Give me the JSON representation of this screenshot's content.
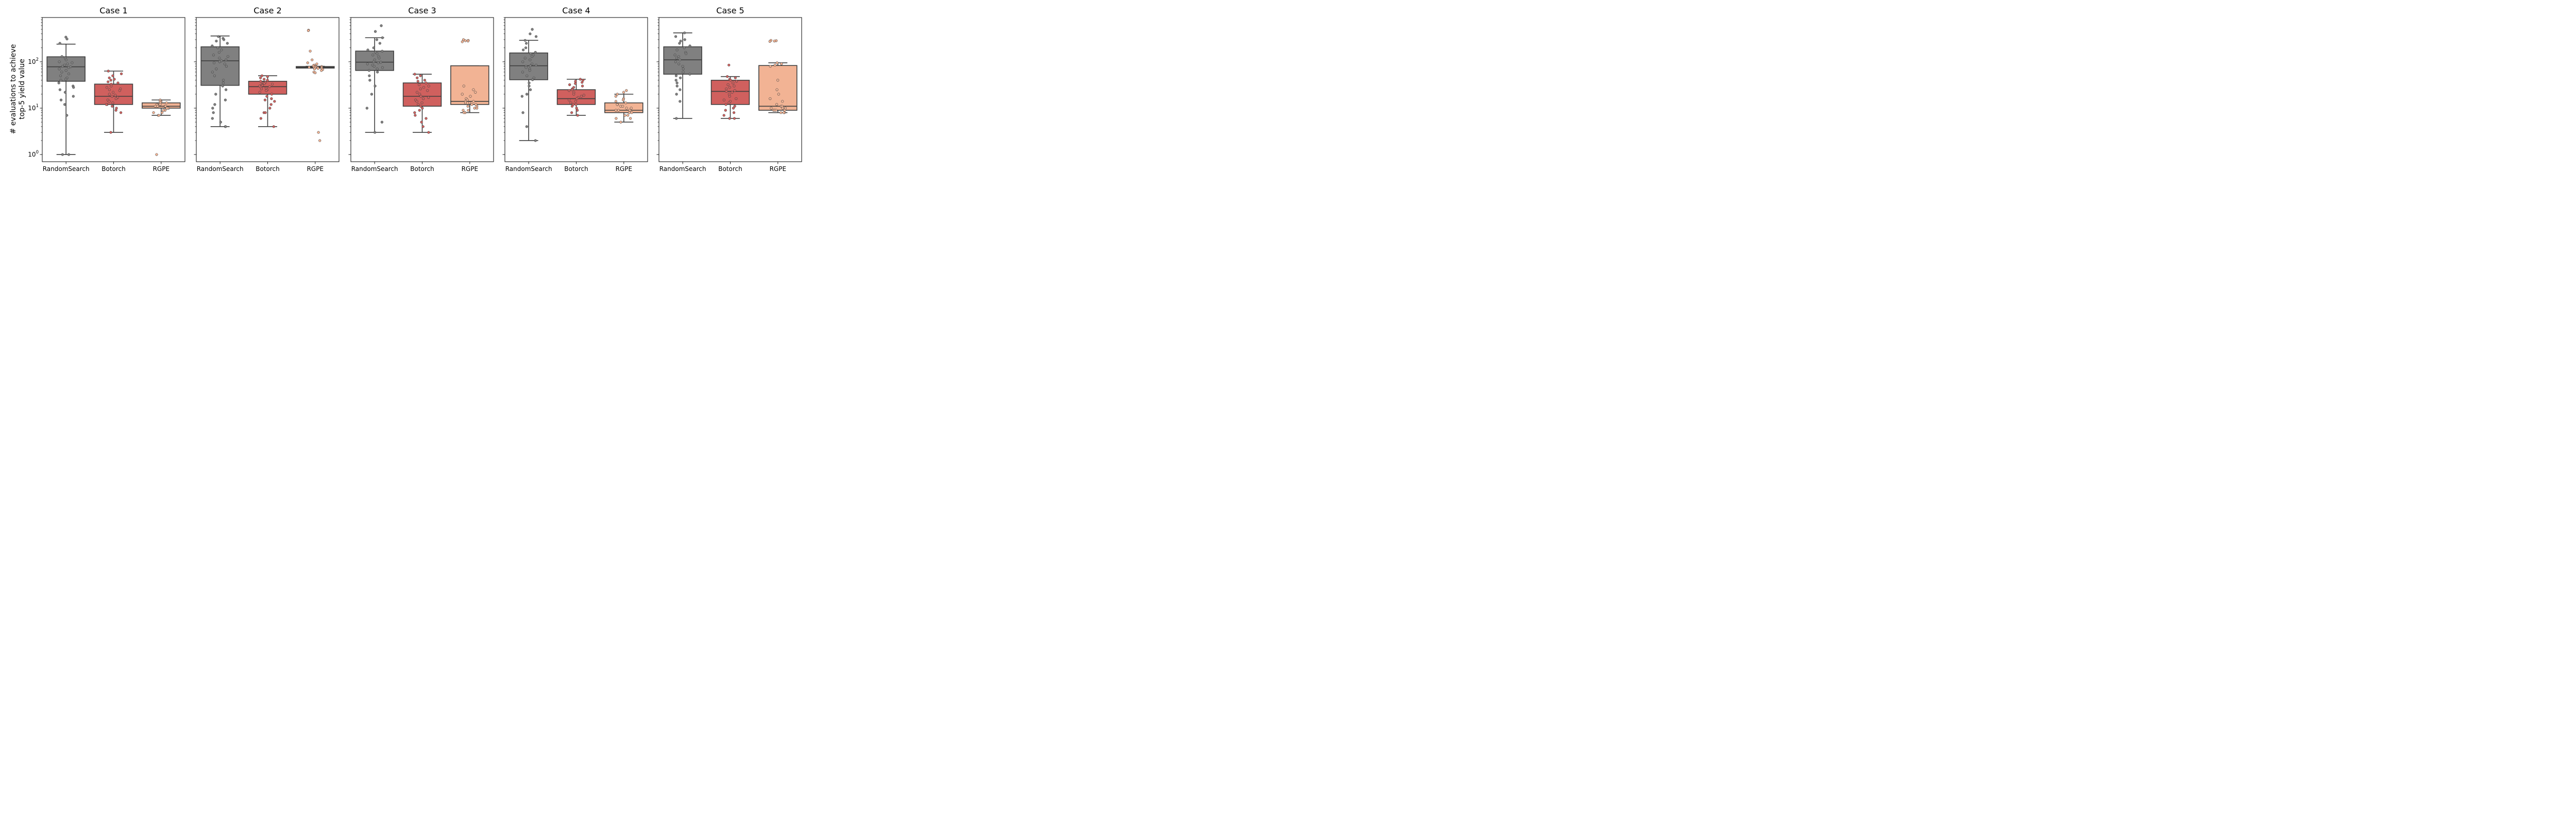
{
  "colors": {
    "RandomSearch": "#808080",
    "Botorch": "#d0605e",
    "RGPE": "#f2b394",
    "box_edge": "#3f3f3f"
  },
  "figure": {
    "ylabel_line1": "# evaluations to achieve",
    "ylabel_line2": "top-5 yield value"
  },
  "chart_data": [
    {
      "type": "box",
      "title": "Case 1",
      "categories": [
        "RandomSearch",
        "Botorch",
        "RGPE"
      ],
      "yscale": "log",
      "ylim": [
        0.7,
        900
      ],
      "yticks": [
        {
          "value": 1,
          "base": "10",
          "exp": "0"
        },
        {
          "value": 10,
          "base": "10",
          "exp": "1"
        },
        {
          "value": 100,
          "base": "10",
          "exp": "2"
        }
      ],
      "boxes": [
        {
          "name": "RandomSearch",
          "whislo": 1,
          "q1": 38,
          "med": 78,
          "q3": 128,
          "whishi": 240,
          "points": [
            340,
            310,
            250,
            130,
            120,
            110,
            100,
            95,
            90,
            85,
            80,
            78,
            75,
            70,
            65,
            60,
            55,
            50,
            45,
            42,
            40,
            35,
            30,
            28,
            25,
            22,
            18,
            15,
            12,
            7,
            1,
            1
          ]
        },
        {
          "name": "Botorch",
          "whislo": 3,
          "q1": 12,
          "med": 18,
          "q3": 33,
          "whishi": 63,
          "points": [
            63,
            55,
            50,
            45,
            42,
            40,
            37,
            35,
            33,
            30,
            28,
            26,
            25,
            24,
            22,
            20,
            19,
            18,
            17,
            16,
            15,
            14,
            13,
            12,
            12,
            11,
            10,
            9,
            8,
            3
          ]
        },
        {
          "name": "RGPE",
          "whislo": 7,
          "q1": 10,
          "med": 11,
          "q3": 13,
          "whishi": 15,
          "points": [
            15,
            14,
            14,
            13,
            13,
            12,
            12,
            12,
            11,
            11,
            11,
            11,
            10,
            10,
            10,
            10,
            9,
            9,
            8,
            8,
            7,
            7,
            1
          ]
        }
      ]
    },
    {
      "type": "box",
      "title": "Case 2",
      "categories": [
        "RandomSearch",
        "Botorch",
        "RGPE"
      ],
      "yscale": "log",
      "ylim": [
        0.7,
        900
      ],
      "yticks": [
        {
          "value": 1,
          "base": "10",
          "exp": "0"
        },
        {
          "value": 10,
          "base": "10",
          "exp": "1"
        },
        {
          "value": 100,
          "base": "10",
          "exp": "2"
        }
      ],
      "boxes": [
        {
          "name": "RandomSearch",
          "whislo": 4,
          "q1": 31,
          "med": 105,
          "q3": 210,
          "whishi": 360,
          "points": [
            350,
            320,
            300,
            280,
            250,
            220,
            200,
            180,
            160,
            140,
            130,
            120,
            110,
            105,
            100,
            95,
            90,
            80,
            70,
            60,
            50,
            40,
            35,
            30,
            25,
            20,
            15,
            12,
            10,
            8,
            6,
            5,
            4,
            4
          ]
        },
        {
          "name": "Botorch",
          "whislo": 4,
          "q1": 20,
          "med": 29,
          "q3": 38,
          "whishi": 50,
          "points": [
            50,
            48,
            45,
            42,
            40,
            38,
            36,
            35,
            34,
            33,
            32,
            31,
            30,
            29,
            28,
            27,
            26,
            25,
            24,
            22,
            20,
            18,
            16,
            15,
            14,
            12,
            10,
            8,
            8,
            6,
            4
          ]
        },
        {
          "name": "RGPE",
          "whislo": 73,
          "q1": 73,
          "med": 76,
          "q3": 79,
          "whishi": 80,
          "points": [
            480,
            470,
            170,
            110,
            95,
            90,
            85,
            82,
            80,
            79,
            78,
            77,
            76,
            76,
            75,
            74,
            73,
            72,
            70,
            68,
            65,
            60,
            58,
            3,
            2
          ]
        }
      ]
    },
    {
      "type": "box",
      "title": "Case 3",
      "categories": [
        "RandomSearch",
        "Botorch",
        "RGPE"
      ],
      "yscale": "log",
      "ylim": [
        0.7,
        900
      ],
      "yticks": [
        {
          "value": 1,
          "base": "10",
          "exp": "0"
        },
        {
          "value": 10,
          "base": "10",
          "exp": "1"
        },
        {
          "value": 100,
          "base": "10",
          "exp": "2"
        }
      ],
      "boxes": [
        {
          "name": "RandomSearch",
          "whislo": 3,
          "q1": 65,
          "med": 98,
          "q3": 170,
          "whishi": 330,
          "points": [
            600,
            450,
            330,
            300,
            250,
            200,
            180,
            170,
            160,
            150,
            140,
            130,
            120,
            110,
            100,
            98,
            95,
            90,
            85,
            80,
            75,
            70,
            65,
            60,
            50,
            40,
            30,
            20,
            10,
            5,
            3
          ]
        },
        {
          "name": "Botorch",
          "whislo": 3,
          "q1": 11,
          "med": 18,
          "q3": 35,
          "whishi": 54,
          "points": [
            54,
            50,
            45,
            40,
            38,
            35,
            32,
            30,
            28,
            26,
            24,
            22,
            20,
            18,
            17,
            16,
            15,
            14,
            13,
            12,
            11,
            10,
            9,
            8,
            7,
            6,
            5,
            4,
            3
          ]
        },
        {
          "name": "RGPE",
          "whislo": 8,
          "q1": 12,
          "med": 14,
          "q3": 82,
          "whishi": 82,
          "points": [
            300,
            290,
            285,
            280,
            270,
            30,
            25,
            22,
            20,
            18,
            16,
            15,
            14,
            14,
            13,
            13,
            12,
            12,
            11,
            11,
            10,
            10,
            9,
            9,
            8,
            8
          ]
        }
      ]
    },
    {
      "type": "box",
      "title": "Case 4",
      "categories": [
        "RandomSearch",
        "Botorch",
        "RGPE"
      ],
      "yscale": "log",
      "ylim": [
        0.7,
        900
      ],
      "yticks": [
        {
          "value": 1,
          "base": "10",
          "exp": "0"
        },
        {
          "value": 10,
          "base": "10",
          "exp": "1"
        },
        {
          "value": 100,
          "base": "10",
          "exp": "2"
        }
      ],
      "boxes": [
        {
          "name": "RandomSearch",
          "whislo": 2,
          "q1": 41,
          "med": 82,
          "q3": 155,
          "whishi": 290,
          "points": [
            500,
            400,
            350,
            290,
            250,
            200,
            180,
            160,
            150,
            140,
            130,
            120,
            110,
            100,
            90,
            85,
            82,
            80,
            75,
            70,
            65,
            60,
            50,
            45,
            41,
            35,
            30,
            25,
            20,
            18,
            8,
            4,
            2
          ]
        },
        {
          "name": "Botorch",
          "whislo": 7,
          "q1": 12,
          "med": 16,
          "q3": 25,
          "whishi": 42,
          "points": [
            42,
            40,
            38,
            36,
            34,
            32,
            30,
            28,
            26,
            25,
            24,
            22,
            20,
            19,
            18,
            17,
            16,
            15,
            14,
            13,
            12,
            12,
            11,
            10,
            9,
            8,
            7
          ]
        },
        {
          "name": "RGPE",
          "whislo": 5,
          "q1": 8,
          "med": 9,
          "q3": 13,
          "whishi": 20,
          "points": [
            24,
            22,
            20,
            18,
            16,
            15,
            14,
            13,
            12,
            12,
            11,
            11,
            10,
            10,
            9,
            9,
            9,
            8,
            8,
            8,
            7,
            7,
            6,
            6,
            5
          ]
        }
      ]
    },
    {
      "type": "box",
      "title": "Case 5",
      "categories": [
        "RandomSearch",
        "Botorch",
        "RGPE"
      ],
      "yscale": "log",
      "ylim": [
        0.7,
        900
      ],
      "yticks": [
        {
          "value": 1,
          "base": "10",
          "exp": "0"
        },
        {
          "value": 10,
          "base": "10",
          "exp": "1"
        },
        {
          "value": 100,
          "base": "10",
          "exp": "2"
        }
      ],
      "boxes": [
        {
          "name": "RandomSearch",
          "whislo": 6,
          "q1": 54,
          "med": 110,
          "q3": 210,
          "whishi": 420,
          "points": [
            420,
            350,
            300,
            280,
            250,
            220,
            200,
            180,
            160,
            150,
            140,
            130,
            120,
            110,
            100,
            90,
            80,
            70,
            60,
            54,
            50,
            45,
            40,
            35,
            30,
            25,
            20,
            14,
            6
          ]
        },
        {
          "name": "Botorch",
          "whislo": 6,
          "q1": 12,
          "med": 23,
          "q3": 40,
          "whishi": 48,
          "points": [
            85,
            48,
            45,
            42,
            40,
            38,
            35,
            32,
            30,
            28,
            26,
            24,
            23,
            22,
            20,
            18,
            16,
            15,
            14,
            13,
            12,
            11,
            10,
            9,
            8,
            7,
            6,
            6
          ]
        },
        {
          "name": "RGPE",
          "whislo": 8,
          "q1": 9,
          "med": 11,
          "q3": 83,
          "whishi": 95,
          "points": [
            290,
            285,
            280,
            275,
            95,
            90,
            85,
            80,
            40,
            25,
            20,
            16,
            14,
            12,
            11,
            11,
            10,
            10,
            10,
            9,
            9,
            9,
            9,
            8,
            8,
            8
          ]
        }
      ]
    }
  ]
}
